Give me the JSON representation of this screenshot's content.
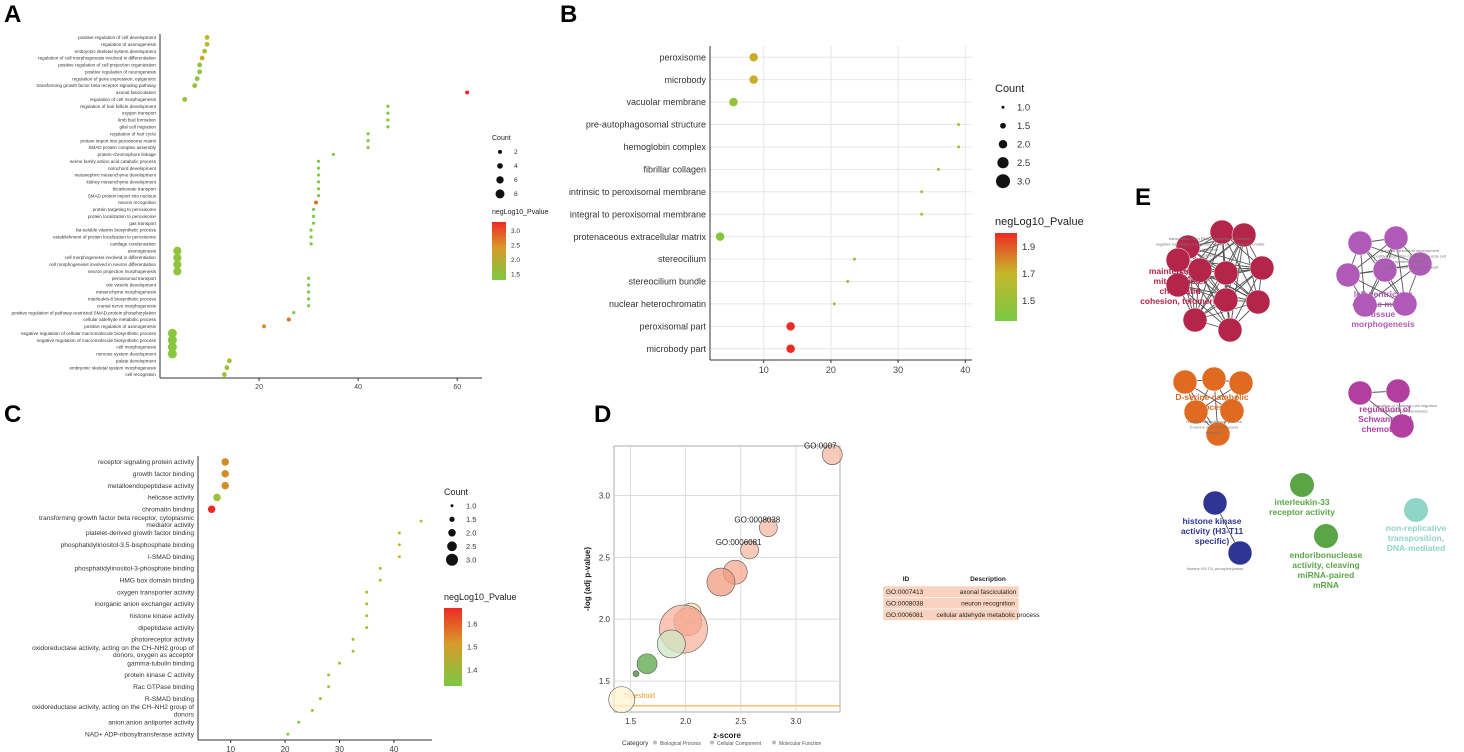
{
  "colors": {
    "low": "#7ac943",
    "mid": "#c8b62a",
    "high": "#ee2a24",
    "grid": "#e6e6e6"
  },
  "panels": {
    "A": {
      "letter": "A"
    },
    "B": {
      "letter": "B"
    },
    "C": {
      "letter": "C"
    },
    "D": {
      "letter": "D"
    },
    "E": {
      "letter": "E"
    }
  },
  "chart_data": [
    {
      "panel": "A",
      "type": "scatter",
      "title": "",
      "xlabel": "",
      "ylabel": "",
      "xlim": [
        0,
        65
      ],
      "xticks": [
        20,
        40,
        60
      ],
      "size_legend": {
        "title": "Count",
        "values": [
          2,
          4,
          6,
          8
        ],
        "range": [
          2,
          8
        ]
      },
      "color_legend": {
        "title": "negLog10_Pvalue",
        "values": [
          3.0,
          2.5,
          2.0,
          1.5
        ],
        "range": [
          1.3,
          3.3
        ]
      },
      "categories": [
        "positive regulation of cell development",
        "regulation of axonogenesis",
        "embryonic skeletal system development",
        "regulation of cell morphogenesis involved in differentiation",
        "positive regulation of cell projection organization",
        "positive regulation of neurogenesis",
        "regulation of gene expression, epigenetic",
        "transforming growth factor beta receptor signaling pathway",
        "axonal fasciculation",
        "regulation of cell morphogenesis",
        "regulation of hair follicle development",
        "oxygen transport",
        "limb bud formation",
        "glial cell migration",
        "regulation of hair cycle",
        "protein import into peroxisome matrix",
        "SMAD protein complex assembly",
        "protein-chromophore linkage",
        "serine family amino acid catabolic process",
        "notochord development",
        "metanephric mesenchyme development",
        "kidney mesenchyme development",
        "bicarbonate transport",
        "SMAD protein import into nucleus",
        "neuron recognition",
        "protein targeting to peroxisome",
        "protein localization to peroxisome",
        "gas transport",
        "fat-soluble vitamin biosynthetic process",
        "establishment of protein localization to peroxisome",
        "cartilage condensation",
        "axonogenesis",
        "cell morphogenesis involved in differentiation",
        "cell morphogenesis involved in neuron differentiation",
        "neuron projection morphogenesis",
        "peroxisomal transport",
        "otic vesicle development",
        "mesenchyme morphogenesis",
        "interleukin-8 biosynthetic process",
        "cranial nerve morphogenesis",
        "positive regulation of pathway-restricted SMAD protein phosphorylation",
        "cellular aldehyde metabolic process",
        "positive regulation of axonogenesis",
        "negative regulation of cellular macromolecule biosynthetic process",
        "negative regulation of macromolecule biosynthetic process",
        "cell morphogenesis",
        "nervous system development",
        "palate development",
        "embryonic skeletal system morphogenesis",
        "cell recognition"
      ],
      "values": [
        9.5,
        9.5,
        9,
        8.5,
        8,
        8,
        7.5,
        7,
        62,
        5,
        46,
        46,
        46,
        46,
        42,
        42,
        42,
        35,
        32,
        32,
        32,
        32,
        32,
        32,
        31.5,
        31,
        31,
        31,
        30.5,
        30.5,
        30.5,
        3.5,
        3.5,
        3.5,
        3.5,
        30,
        30,
        30,
        30,
        30,
        27,
        26,
        21,
        2.5,
        2.5,
        2.5,
        2.5,
        14,
        13.5,
        13
      ],
      "counts": [
        3,
        3,
        3,
        3,
        3,
        3,
        3,
        3,
        2,
        3,
        1,
        1,
        1,
        1,
        1,
        1,
        1,
        1,
        1,
        1,
        1,
        1,
        1,
        1,
        2,
        1,
        1,
        1,
        1,
        1,
        1,
        7,
        7,
        7,
        7,
        1,
        1,
        1,
        1,
        1,
        1,
        2,
        2,
        8,
        8,
        8,
        8,
        3,
        3,
        3
      ],
      "negLog10_Pvalue": [
        2.2,
        2.0,
        1.9,
        2.4,
        1.6,
        1.6,
        1.6,
        1.7,
        3.3,
        1.5,
        1.4,
        1.4,
        1.4,
        1.4,
        1.4,
        1.4,
        1.4,
        1.4,
        1.4,
        1.4,
        1.4,
        1.4,
        1.4,
        1.4,
        2.8,
        1.4,
        1.4,
        1.4,
        1.4,
        1.4,
        1.4,
        1.6,
        1.6,
        1.6,
        1.6,
        1.4,
        1.4,
        1.4,
        1.4,
        1.4,
        1.4,
        2.8,
        2.6,
        1.5,
        1.5,
        1.5,
        1.5,
        1.8,
        1.7,
        1.7
      ]
    },
    {
      "panel": "B",
      "type": "scatter",
      "title": "",
      "xlabel": "",
      "ylabel": "",
      "xlim": [
        2,
        41
      ],
      "xticks": [
        10,
        20,
        30,
        40
      ],
      "size_legend": {
        "title": "Count",
        "values": [
          "1.0",
          "1.5",
          "2.0",
          "2.5",
          "3.0"
        ],
        "range": [
          1,
          3
        ]
      },
      "color_legend": {
        "title": "negLog10_Pvalue",
        "values": [
          1.9,
          1.7,
          1.5
        ],
        "range": [
          1.35,
          2.0
        ]
      },
      "categories": [
        "peroxisome",
        "microbody",
        "vacuolar membrane",
        "pre-autophagosomal structure",
        "hemoglobin complex",
        "fibrillar collagen",
        "intrinsic to peroxisomal membrane",
        "integral to peroxisomal membrane",
        "protenaceous extracellular matrix",
        "stereocilium",
        "stereocilium bundle",
        "nuclear heterochromatin",
        "peroxisomal part",
        "microbody part"
      ],
      "values": [
        8.5,
        8.5,
        5.5,
        39,
        39,
        36,
        33.5,
        33.5,
        3.5,
        23.5,
        22.5,
        20.5,
        14,
        14
      ],
      "counts": [
        2,
        2,
        2,
        1,
        1,
        1,
        1,
        1,
        2,
        1,
        1,
        1,
        2,
        2
      ],
      "negLog10_Pvalue": [
        1.7,
        1.7,
        1.45,
        1.55,
        1.55,
        1.5,
        1.55,
        1.55,
        1.4,
        1.45,
        1.45,
        1.45,
        2.0,
        2.0
      ]
    },
    {
      "panel": "C",
      "type": "scatter",
      "title": "",
      "xlabel": "",
      "ylabel": "",
      "xlim": [
        4,
        47
      ],
      "xticks": [
        10,
        20,
        30,
        40
      ],
      "size_legend": {
        "title": "Count",
        "values": [
          "1.0",
          "1.5",
          "2.0",
          "2.5",
          "3.0"
        ],
        "range": [
          1,
          3
        ]
      },
      "color_legend": {
        "title": "negLog10_Pvalue",
        "values": [
          1.6,
          1.5,
          1.4
        ],
        "range": [
          1.33,
          1.67
        ]
      },
      "categories": [
        "receptor signaling protein activity",
        "growth factor binding",
        "metalloendopeptidase activity",
        "helicase activity",
        "chromatin binding",
        "transforming growth factor beta receptor, cytoplasmic mediator activity",
        "platelet-derived growth factor binding",
        "phosphatidylinositol-3,5-bisphosphate binding",
        "I-SMAD binding",
        "phosphatidylinositol-3-phosphate binding",
        "HMG box domain binding",
        "oxygen transporter activity",
        "inorganic anion exchanger activity",
        "histone kinase activity",
        "dipeptidase activity",
        "photoreceptor activity",
        "oxidoreductase activity, acting on the CH-NH2 group of donors, oxygen as acceptor",
        "gamma-tubulin binding",
        "protein kinase C activity",
        "Rac GTPase binding",
        "R-SMAD binding",
        "oxidoreductase activity, acting on the CH-NH2 group of donors",
        "anion:anion antiporter activity",
        "NAD+ ADP-ribosyltransferase activity"
      ],
      "values": [
        9,
        9,
        9,
        7.5,
        6.5,
        45,
        41,
        41,
        41,
        37.5,
        37.5,
        35,
        35,
        35,
        35,
        32.5,
        32.5,
        30,
        28,
        28,
        26.5,
        25,
        22.5,
        20.5
      ],
      "counts": [
        2,
        2,
        2,
        2,
        2,
        1,
        1,
        1,
        1,
        1,
        1,
        1,
        1,
        1,
        1,
        1,
        1,
        1,
        1,
        1,
        1,
        1,
        1,
        1
      ],
      "negLog10_Pvalue": [
        1.55,
        1.55,
        1.55,
        1.4,
        1.67,
        1.5,
        1.5,
        1.5,
        1.5,
        1.45,
        1.45,
        1.45,
        1.45,
        1.45,
        1.45,
        1.4,
        1.4,
        1.4,
        1.4,
        1.4,
        1.4,
        1.4,
        1.35,
        1.35
      ]
    },
    {
      "panel": "D",
      "type": "scatter",
      "title": "",
      "xlabel": "z-score",
      "ylabel": "-log (adj p-value)",
      "xlim": [
        1.35,
        3.4
      ],
      "ylim": [
        1.25,
        3.4
      ],
      "xticks": [
        1.5,
        2.0,
        2.5,
        3.0
      ],
      "yticks": [
        1.5,
        2.0,
        2.5,
        3.0
      ],
      "threshold": {
        "y": 1.3,
        "label": "Threshold"
      },
      "points": [
        {
          "x": 3.33,
          "y": 3.33,
          "r": 10,
          "label": "GO:0007"
        },
        {
          "x": 2.75,
          "y": 2.74,
          "r": 9,
          "label": "GO:0008038"
        },
        {
          "x": 2.58,
          "y": 2.56,
          "r": 9,
          "label": "GO:0006081"
        },
        {
          "x": 2.45,
          "y": 2.38,
          "r": 12,
          "label": ""
        },
        {
          "x": 2.32,
          "y": 2.3,
          "r": 14,
          "label": ""
        },
        {
          "x": 2.05,
          "y": 2.05,
          "r": 10,
          "label": ""
        },
        {
          "x": 2.02,
          "y": 1.98,
          "r": 14,
          "label": ""
        },
        {
          "x": 1.98,
          "y": 1.92,
          "r": 24,
          "label": ""
        },
        {
          "x": 1.87,
          "y": 1.8,
          "r": 14,
          "label": ""
        },
        {
          "x": 1.65,
          "y": 1.64,
          "r": 10,
          "label": ""
        },
        {
          "x": 1.55,
          "y": 1.56,
          "r": 3,
          "label": ""
        },
        {
          "x": 1.42,
          "y": 1.35,
          "r": 13,
          "label": ""
        }
      ],
      "legend": {
        "title": "Category",
        "items": [
          "Biological Process",
          "Cellular Component",
          "Molecular Function"
        ]
      },
      "table": {
        "headers": [
          "ID",
          "Description"
        ],
        "rows": [
          [
            "GO:0007413",
            "axonal fasciculation"
          ],
          [
            "GO:0008038",
            "neuron recognition"
          ],
          [
            "GO:0006081",
            "cellular aldehyde metabolic process"
          ]
        ]
      }
    }
  ],
  "network": {
    "clusters": [
      {
        "label": [
          "maintenance of",
          "mitotic sister",
          "chromatid",
          "cohesion, telomeric"
        ],
        "color": "#b5254a",
        "minor": [
          "transcription from RNA polymerase II promoter",
          "negative regulation of maintenance of mitotic sister chromatid",
          "telomeric",
          "binding"
        ]
      },
      {
        "label": [
          "left ventricular",
          "cardiac muscle",
          "tissue",
          "morphogenesis"
        ],
        "color": "#b05ab8",
        "minor": [
          "gonadal mesoderm development",
          "positive regulation of cardiac muscle cell",
          "myofibril assembly",
          "cardiac muscle involved in heart"
        ]
      },
      {
        "label": [
          "D-serine catabolic",
          "process"
        ],
        "color": "#e06a20",
        "minor": [
          "D-amino acid catabolic process",
          "D-serine metabolic process",
          "threonine"
        ]
      },
      {
        "label": [
          "regulation of",
          "Schwann cell",
          "chemotaxis"
        ],
        "color": "#b23ea0",
        "minor": [
          "regulation of Schwann cell migration",
          "Schwann cell chemotaxis"
        ]
      },
      {
        "label": [
          "histone kinase",
          "activity (H3-T11",
          "specific)"
        ],
        "color": "#2e3592",
        "minor": [
          "histone H3-T11 phosphorylation"
        ]
      },
      {
        "label": [
          "interleukin-33",
          "receptor activity"
        ],
        "color": "#5aa646",
        "minor": []
      },
      {
        "label": [
          "endoribonuclease",
          "activity, cleaving",
          "miRNA-paired",
          "mRNA"
        ],
        "color": "#5aa646",
        "minor": []
      },
      {
        "label": [
          "non-replicative",
          "transposition,",
          "DNA-mediated"
        ],
        "color": "#8fd5c8",
        "minor": []
      }
    ]
  }
}
